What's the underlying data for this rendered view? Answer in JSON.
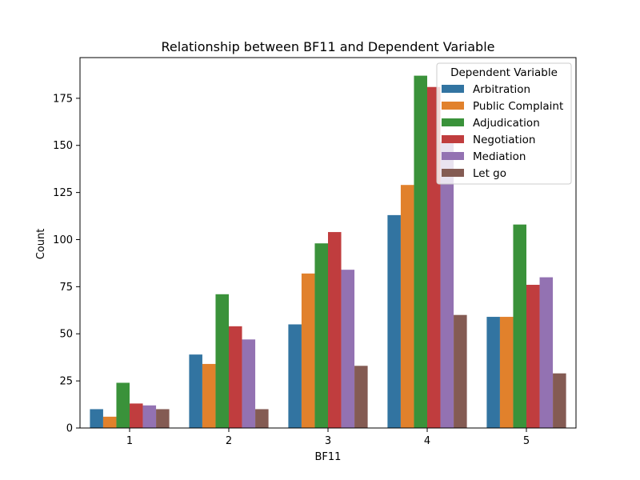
{
  "chart_data": {
    "type": "bar",
    "title": "Relationship between BF11 and Dependent Variable",
    "xlabel": "BF11",
    "ylabel": "Count",
    "categories": [
      "1",
      "2",
      "3",
      "4",
      "5"
    ],
    "ylim": [
      0,
      196.6
    ],
    "yticks": [
      0,
      25,
      50,
      75,
      100,
      125,
      150,
      175
    ],
    "grid": false,
    "legend": {
      "title": "Dependent Variable",
      "placement": "top-right"
    },
    "series": [
      {
        "name": "Arbitration",
        "color": "#3274a1",
        "values": [
          10,
          39,
          55,
          113,
          59
        ]
      },
      {
        "name": "Public Complaint",
        "color": "#e1812c",
        "values": [
          6,
          34,
          82,
          129,
          59
        ]
      },
      {
        "name": "Adjudication",
        "color": "#3a923a",
        "values": [
          24,
          71,
          98,
          187,
          108
        ]
      },
      {
        "name": "Negotiation",
        "color": "#c03d3e",
        "values": [
          13,
          54,
          104,
          181,
          76
        ]
      },
      {
        "name": "Mediation",
        "color": "#9372b2",
        "values": [
          12,
          47,
          84,
          152,
          80
        ]
      },
      {
        "name": "Let go",
        "color": "#845b53",
        "values": [
          10,
          10,
          33,
          60,
          29
        ]
      }
    ]
  }
}
